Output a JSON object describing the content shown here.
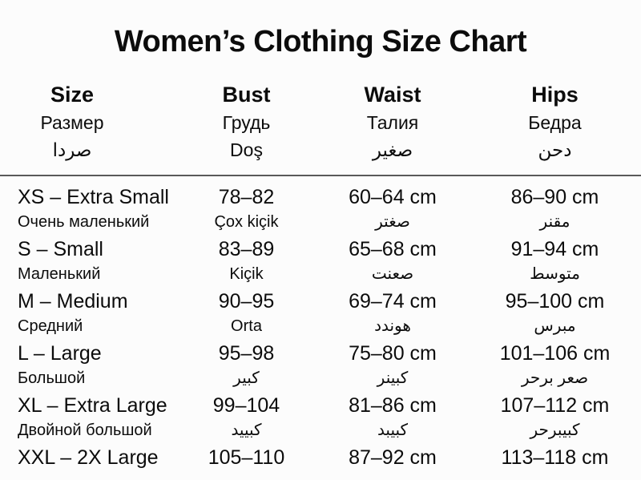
{
  "title": "Women’s Clothing Size Chart",
  "header": {
    "size": {
      "en": "Size",
      "ru": "Размер",
      "alt": "صردا"
    },
    "bust": {
      "en": "Bust",
      "ru": "Грудь",
      "alt": "Doş"
    },
    "waist": {
      "en": "Waist",
      "ru": "Талия",
      "alt": "صغير"
    },
    "hips": {
      "en": "Hips",
      "ru": "Бедра",
      "alt": "دحن"
    }
  },
  "rows": [
    {
      "size": "XS – Extra Small",
      "size_sub": "Очень маленький",
      "bust": "78–82",
      "bust_sub": "Çox kiçik",
      "waist": "60–64 cm",
      "waist_sub": "صغتر",
      "hips": "86–90 cm",
      "hips_sub": "مقنر"
    },
    {
      "size": "S – Small",
      "size_sub": "Маленький",
      "bust": "83–89",
      "bust_sub": "Kiçik",
      "waist": "65–68 cm",
      "waist_sub": "صعنت",
      "hips": "91–94 cm",
      "hips_sub": "متوسط"
    },
    {
      "size": "M – Medium",
      "size_sub": "Средний",
      "bust": "90–95",
      "bust_sub": "Orta",
      "waist": "69–74 cm",
      "waist_sub": "هوندد",
      "hips": "95–100 cm",
      "hips_sub": "مبرس"
    },
    {
      "size": "L – Large",
      "size_sub": "Большой",
      "bust": "95–98",
      "bust_sub": "كبير",
      "waist": "75–80 cm",
      "waist_sub": "كبينر",
      "hips": "101–106 cm",
      "hips_sub": "صعر برحر"
    },
    {
      "size": "XL – Extra Large",
      "size_sub": "Двойной большой",
      "bust": "99–104",
      "bust_sub": "كبييد",
      "waist": "81–86 cm",
      "waist_sub": "كبيبد",
      "hips": "107–112 cm",
      "hips_sub": "كبيبرحر"
    },
    {
      "size": "XXL – 2X Large",
      "bust": "105–110",
      "waist": "87–92 cm",
      "hips": "113–118 cm"
    }
  ],
  "chart_data": {
    "type": "table",
    "title": "Women’s Clothing Size Chart",
    "columns": [
      "Size",
      "Bust",
      "Waist",
      "Hips"
    ],
    "column_translations": {
      "russian": [
        "Размер",
        "Грудь",
        "Талия",
        "Бедра"
      ],
      "other": [
        "صردا",
        "Doş",
        "صغير",
        "دحن"
      ]
    },
    "rows": [
      [
        "XS – Extra Small",
        "78–82",
        "60–64 cm",
        "86–90 cm"
      ],
      [
        "S – Small",
        "83–89",
        "65–68 cm",
        "91–94 cm"
      ],
      [
        "M – Medium",
        "90–95",
        "69–74 cm",
        "95–100 cm"
      ],
      [
        "L – Large",
        "95–98",
        "75–80 cm",
        "101–106 cm"
      ],
      [
        "XL – Extra Large",
        "99–104",
        "81–86 cm",
        "107–112 cm"
      ],
      [
        "XXL – 2X Large",
        "105–110",
        "87–92 cm",
        "113–118 cm"
      ]
    ],
    "row_translations": [
      "Очень маленький",
      "Маленький",
      "Средний",
      "Большой",
      "Двойной большой",
      ""
    ]
  }
}
